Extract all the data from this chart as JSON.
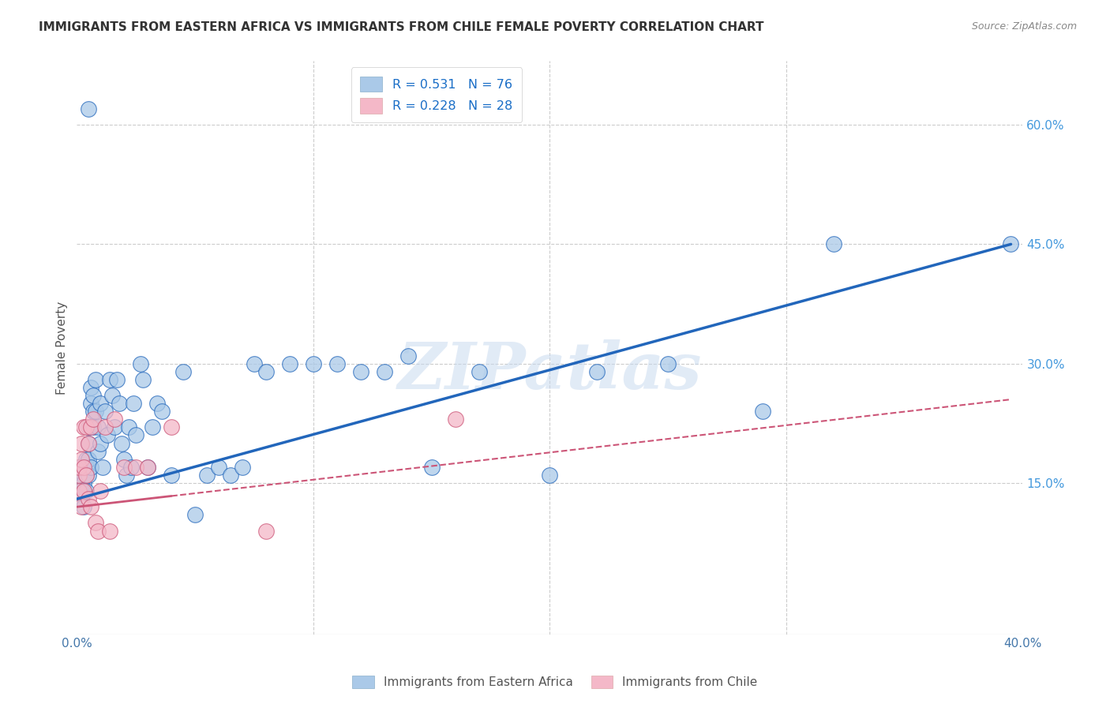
{
  "title": "IMMIGRANTS FROM EASTERN AFRICA VS IMMIGRANTS FROM CHILE FEMALE POVERTY CORRELATION CHART",
  "source": "Source: ZipAtlas.com",
  "ylabel": "Female Poverty",
  "right_yticks": [
    "15.0%",
    "30.0%",
    "45.0%",
    "60.0%"
  ],
  "right_ytick_vals": [
    0.15,
    0.3,
    0.45,
    0.6
  ],
  "xlim": [
    0.0,
    0.4
  ],
  "ylim": [
    -0.04,
    0.68
  ],
  "color_blue": "#aac9e8",
  "color_pink": "#f4b8c8",
  "color_blue_line": "#2266bb",
  "color_pink_line": "#cc5577",
  "watermark": "ZIPatlas",
  "legend_label1": "Immigrants from Eastern Africa",
  "legend_label2": "Immigrants from Chile",
  "legend_r1_text": "R = 0.531   N = 76",
  "legend_r2_text": "R = 0.228   N = 28",
  "blue_line_x0": 0.0,
  "blue_line_y0": 0.13,
  "blue_line_x1": 0.395,
  "blue_line_y1": 0.45,
  "pink_line_x0": 0.0,
  "pink_line_y0": 0.12,
  "pink_line_x1": 0.395,
  "pink_line_y1": 0.255,
  "blue_x": [
    0.001,
    0.001,
    0.001,
    0.002,
    0.002,
    0.002,
    0.002,
    0.003,
    0.003,
    0.003,
    0.003,
    0.004,
    0.004,
    0.004,
    0.004,
    0.005,
    0.005,
    0.005,
    0.005,
    0.006,
    0.006,
    0.006,
    0.007,
    0.007,
    0.007,
    0.008,
    0.008,
    0.009,
    0.009,
    0.01,
    0.01,
    0.011,
    0.012,
    0.013,
    0.014,
    0.015,
    0.016,
    0.017,
    0.018,
    0.019,
    0.02,
    0.021,
    0.022,
    0.023,
    0.024,
    0.025,
    0.027,
    0.028,
    0.03,
    0.032,
    0.034,
    0.036,
    0.04,
    0.045,
    0.05,
    0.055,
    0.06,
    0.065,
    0.07,
    0.075,
    0.08,
    0.09,
    0.1,
    0.11,
    0.12,
    0.13,
    0.14,
    0.15,
    0.17,
    0.2,
    0.22,
    0.25,
    0.29,
    0.005,
    0.32,
    0.395
  ],
  "blue_y": [
    0.17,
    0.16,
    0.14,
    0.15,
    0.14,
    0.13,
    0.17,
    0.14,
    0.16,
    0.12,
    0.15,
    0.16,
    0.14,
    0.18,
    0.17,
    0.16,
    0.18,
    0.2,
    0.22,
    0.17,
    0.25,
    0.27,
    0.24,
    0.26,
    0.22,
    0.24,
    0.28,
    0.22,
    0.19,
    0.2,
    0.25,
    0.17,
    0.24,
    0.21,
    0.28,
    0.26,
    0.22,
    0.28,
    0.25,
    0.2,
    0.18,
    0.16,
    0.22,
    0.17,
    0.25,
    0.21,
    0.3,
    0.28,
    0.17,
    0.22,
    0.25,
    0.24,
    0.16,
    0.29,
    0.11,
    0.16,
    0.17,
    0.16,
    0.17,
    0.3,
    0.29,
    0.3,
    0.3,
    0.3,
    0.29,
    0.29,
    0.31,
    0.17,
    0.29,
    0.16,
    0.29,
    0.3,
    0.24,
    0.62,
    0.45,
    0.45
  ],
  "pink_x": [
    0.001,
    0.001,
    0.001,
    0.002,
    0.002,
    0.002,
    0.003,
    0.003,
    0.003,
    0.004,
    0.004,
    0.005,
    0.005,
    0.006,
    0.006,
    0.007,
    0.008,
    0.009,
    0.01,
    0.012,
    0.014,
    0.016,
    0.02,
    0.025,
    0.03,
    0.04,
    0.08,
    0.16
  ],
  "pink_y": [
    0.14,
    0.16,
    0.17,
    0.12,
    0.18,
    0.2,
    0.22,
    0.14,
    0.17,
    0.16,
    0.22,
    0.13,
    0.2,
    0.12,
    0.22,
    0.23,
    0.1,
    0.09,
    0.14,
    0.22,
    0.09,
    0.23,
    0.17,
    0.17,
    0.17,
    0.22,
    0.09,
    0.23
  ]
}
